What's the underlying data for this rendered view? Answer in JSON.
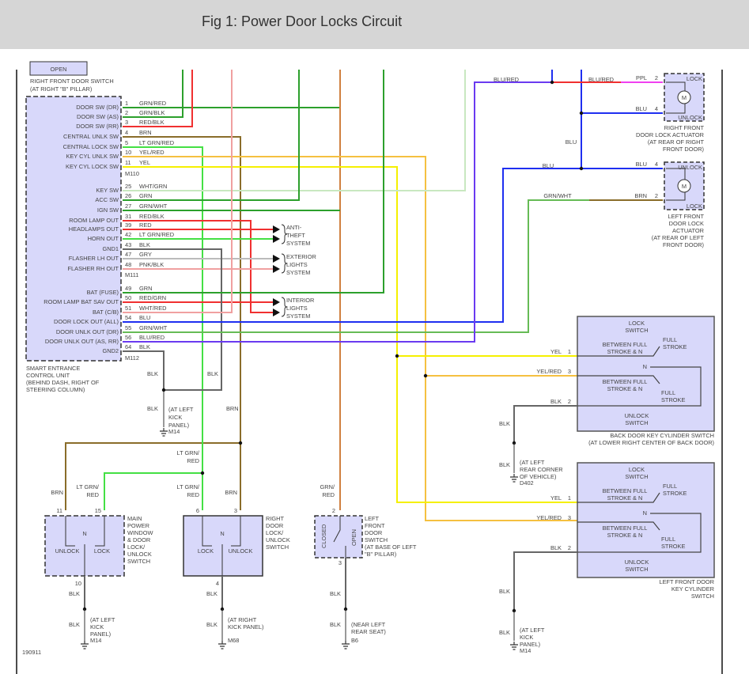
{
  "title": "Fig 1: Power Door Locks Circuit",
  "footer_code": "190911",
  "top_switch": {
    "state": "OPEN",
    "name": [
      "RIGHT FRONT DOOR SWITCH",
      "(AT RIGHT \"B\" PILLAR)"
    ]
  },
  "ecu": {
    "name": [
      "SMART ENTRANCE",
      "CONTROL UNIT",
      "(BEHIND DASH, RIGHT OF",
      "STEERING COLUMN)"
    ],
    "connectors": [
      "M110",
      "M111",
      "M112"
    ],
    "pins": [
      {
        "num": "1",
        "wire": "GRN/RED",
        "func": "DOOR SW (DR)"
      },
      {
        "num": "2",
        "wire": "GRN/BLK",
        "func": "DOOR SW (AS)"
      },
      {
        "num": "3",
        "wire": "RED/BLK",
        "func": "DOOR SW (RR)"
      },
      {
        "num": "4",
        "wire": "BRN",
        "func": "CENTRAL UNLK SW"
      },
      {
        "num": "5",
        "wire": "LT GRN/RED",
        "func": "CENTRAL LOCK SW"
      },
      {
        "num": "10",
        "wire": "YEL/RED",
        "func": "KEY CYL UNLK SW"
      },
      {
        "num": "11",
        "wire": "YEL",
        "func": "KEY CYL LOCK SW"
      },
      {
        "num": "25",
        "wire": "WHT/GRN",
        "func": "KEY SW"
      },
      {
        "num": "26",
        "wire": "GRN",
        "func": "ACC SW"
      },
      {
        "num": "27",
        "wire": "GRN/WHT",
        "func": "IGN SW"
      },
      {
        "num": "31",
        "wire": "RED/BLK",
        "func": "ROOM LAMP OUT"
      },
      {
        "num": "39",
        "wire": "RED",
        "func": "HEADLAMPS OUT"
      },
      {
        "num": "42",
        "wire": "LT GRN/RED",
        "func": "HORN OUT"
      },
      {
        "num": "43",
        "wire": "BLK",
        "func": "GND1"
      },
      {
        "num": "47",
        "wire": "GRY",
        "func": "FLASHER LH OUT"
      },
      {
        "num": "48",
        "wire": "PNK/BLK",
        "func": "FLASHER RH OUT"
      },
      {
        "num": "49",
        "wire": "GRN",
        "func": "BAT (FUSE)"
      },
      {
        "num": "50",
        "wire": "RED/GRN",
        "func": "ROOM LAMP BAT SAV OUT"
      },
      {
        "num": "51",
        "wire": "WHT/RED",
        "func": "BAT (C/B)"
      },
      {
        "num": "54",
        "wire": "BLU",
        "func": "DOOR LOCK OUT (ALL)"
      },
      {
        "num": "55",
        "wire": "GRN/WHT",
        "func": "DOOR UNLK OUT (DR)"
      },
      {
        "num": "56",
        "wire": "BLU/RED",
        "func": "DOOR UNLK OUT (AS, RR)"
      },
      {
        "num": "64",
        "wire": "BLK",
        "func": "GND2"
      }
    ]
  },
  "systems": [
    [
      "ANTI-",
      "THEFT",
      "SYSTEM"
    ],
    [
      "EXTERIOR",
      "LIGHTS",
      "SYSTEM"
    ],
    [
      "INTERIOR",
      "LIGHTS",
      "SYSTEM"
    ]
  ],
  "actuators": {
    "right": {
      "name": [
        "RIGHT FRONT",
        "DOOR LOCK ACTUATOR",
        "(AT REAR OF RIGHT",
        "FRONT DOOR)"
      ],
      "top": "LOCK",
      "bottom": "UNLOCK",
      "motor": "M",
      "pins": [
        {
          "num": "2",
          "wire": "PPL"
        },
        {
          "num": "4",
          "wire": "BLU"
        }
      ]
    },
    "left": {
      "name": [
        "LEFT FRONT",
        "DOOR LOCK",
        "ACTUATOR",
        "(AT REAR OF LEFT",
        "FRONT DOOR)"
      ],
      "top": "UNLOCK",
      "bottom": "LOCK",
      "motor": "M",
      "pins": [
        {
          "num": "4",
          "wire": "BLU"
        },
        {
          "num": "2",
          "wire": "BRN"
        }
      ]
    }
  },
  "wire_labels": {
    "blu_red_a": "BLU/RED",
    "blu_red_b": "BLU/RED",
    "blu_a": "BLU",
    "blu_b": "BLU",
    "grn_wht": "GRN/WHT",
    "blk": "BLK",
    "brn": "BRN",
    "ltgrn_red": "LT GRN/\nRED",
    "grn_red": "GRN/\nRED"
  },
  "key_switches": [
    {
      "name": [
        "BACK DOOR KEY CYLINDER SWITCH",
        "(AT LOWER RIGHT CENTER OF BACK DOOR)"
      ],
      "ground": [
        "(AT LEFT",
        "REAR CORNER",
        "OF VEHICLE)"
      ],
      "ground_id": "D402"
    },
    {
      "name": [
        "LEFT FRONT DOOR",
        "KEY CYLINDER",
        "SWITCH"
      ],
      "ground": [
        "(AT LEFT",
        "KICK",
        "PANEL)"
      ],
      "ground_id": "M14"
    }
  ],
  "key_switch_text": {
    "lock": [
      "LOCK",
      "SWITCH"
    ],
    "unlock": [
      "UNLOCK",
      "SWITCH"
    ],
    "between": [
      "BETWEEN FULL",
      "STROKE & N"
    ],
    "full": [
      "FULL",
      "STROKE"
    ],
    "n": "N",
    "pins": [
      {
        "num": "1",
        "wire": "YEL"
      },
      {
        "num": "3",
        "wire": "YEL/RED"
      },
      {
        "num": "2",
        "wire": "BLK"
      }
    ]
  },
  "main_switch": {
    "name": [
      "MAIN",
      "POWER",
      "WINDOW",
      "& DOOR",
      "LOCK/",
      "UNLOCK",
      "SWITCH"
    ],
    "left": "UNLOCK",
    "right": "LOCK",
    "n": "N",
    "pins": [
      "11",
      "15",
      "10"
    ],
    "ground": [
      "(AT LEFT",
      "KICK",
      "PANEL)"
    ],
    "ground_id": "M14"
  },
  "right_switch": {
    "name": [
      "RIGHT",
      "DOOR",
      "LOCK/",
      "UNLOCK",
      "SWITCH"
    ],
    "left": "LOCK",
    "right": "UNLOCK",
    "n": "N",
    "pins": [
      "6",
      "3",
      "4"
    ],
    "ground": [
      "(AT RIGHT",
      "KICK PANEL)"
    ],
    "ground_id": "M68"
  },
  "door_switch": {
    "name": [
      "LEFT",
      "FRONT",
      "DOOR",
      "SWITCH",
      "(AT BASE OF LEFT",
      "\"B\" PILLAR)"
    ],
    "closed": "CLOSED",
    "open": "OPEN",
    "pins": [
      "2",
      "3"
    ],
    "ground": [
      "(NEAR LEFT",
      "REAR SEAT)"
    ],
    "ground_id": "B6"
  },
  "ecu_ground": {
    "ground": [
      "(AT LEFT",
      "KICK",
      "PANEL)"
    ],
    "ground_id": "M14"
  },
  "colors": {
    "GRN": "#2ca02c",
    "RED": "#f03030",
    "BRN": "#8a6d2a",
    "LTGRN": "#44e044",
    "YEL": "#f5f000",
    "YELRED": "#f5c040",
    "BLU": "#1f2ff0",
    "PURPLE": "#6a3af0",
    "PINK": "#f0a0a0",
    "GRY": "#bbbbbb",
    "BLK": "#666666",
    "PPL": "#f040f0",
    "BOX": "#d8d8fa"
  }
}
